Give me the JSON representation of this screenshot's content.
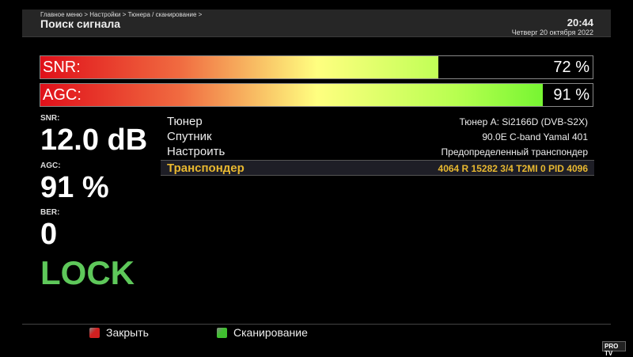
{
  "header": {
    "breadcrumb": "Главное меню > Настройки > Тюнера / сканирование >",
    "title": "Поиск сигнала",
    "time": "20:44",
    "date": "Четверг 20 октября 2022"
  },
  "bars": [
    {
      "label": "SNR:",
      "value": "72 %",
      "percent": 72
    },
    {
      "label": "AGC:",
      "value": "91 %",
      "percent": 91
    }
  ],
  "stats": {
    "snr_label": "SNR:",
    "snr_value": "12.0 dB",
    "agc_label": "AGC:",
    "agc_value": "91 %",
    "ber_label": "BER:",
    "ber_value": "0",
    "status": "LOCK"
  },
  "settings": [
    {
      "key": "Тюнер",
      "value": "Тюнер A: Si2166D (DVB-S2X)"
    },
    {
      "key": "Спутник",
      "value": "90.0E C-band Yamal 401"
    },
    {
      "key": "Настроить",
      "value": "Предопределенный транспондер"
    },
    {
      "key": "Транспондер",
      "value": "4064 R 15282 3/4 T2MI 0 PID 4096",
      "selected": true
    }
  ],
  "footer": {
    "close_label": "Закрыть",
    "scan_label": "Сканирование",
    "close_color": "#d02020",
    "scan_color": "#40c030"
  },
  "logo": "PRO TV"
}
